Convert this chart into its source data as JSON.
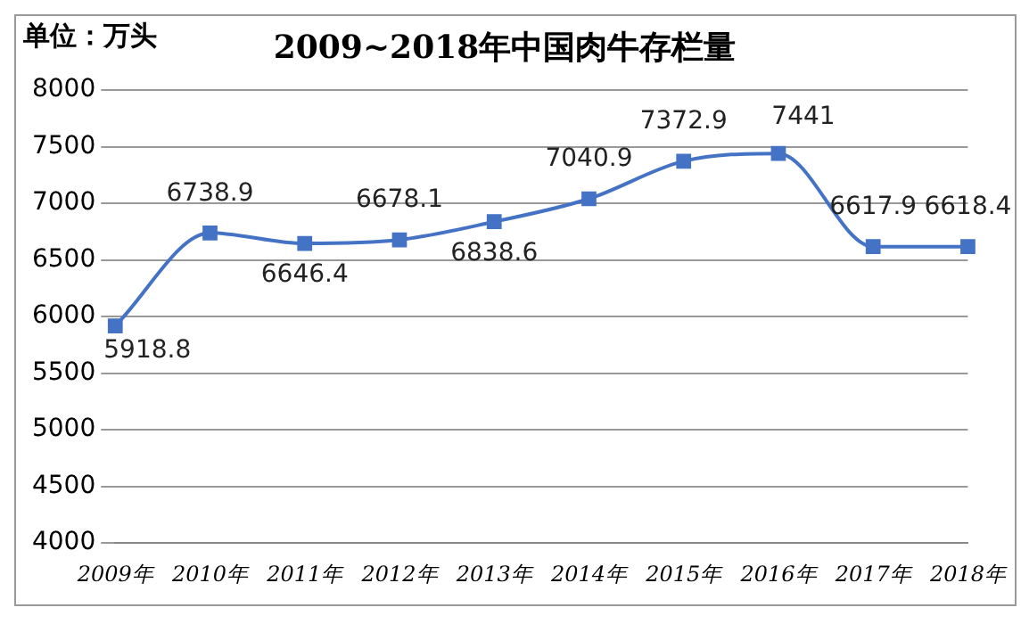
{
  "chart_data": {
    "type": "line",
    "title": "2009~2018年中国肉牛存栏量",
    "annotations": [
      "单位：万头"
    ],
    "categories": [
      "2009年",
      "2010年",
      "2011年",
      "2012年",
      "2013年",
      "2014年",
      "2015年",
      "2016年",
      "2017年",
      "2018年"
    ],
    "series": [
      {
        "color": "#4472c4",
        "values": [
          5918.8,
          6738.9,
          6646.4,
          6678.1,
          6838.6,
          7040.9,
          7372.9,
          7441,
          6617.9,
          6618.4
        ]
      }
    ],
    "ylim": [
      4000,
      8000
    ],
    "yticks": [
      4000,
      4500,
      5000,
      5500,
      6000,
      6500,
      7000,
      7500,
      8000
    ],
    "grid": "y",
    "marker": "square",
    "data_labels": true,
    "legend": false
  }
}
